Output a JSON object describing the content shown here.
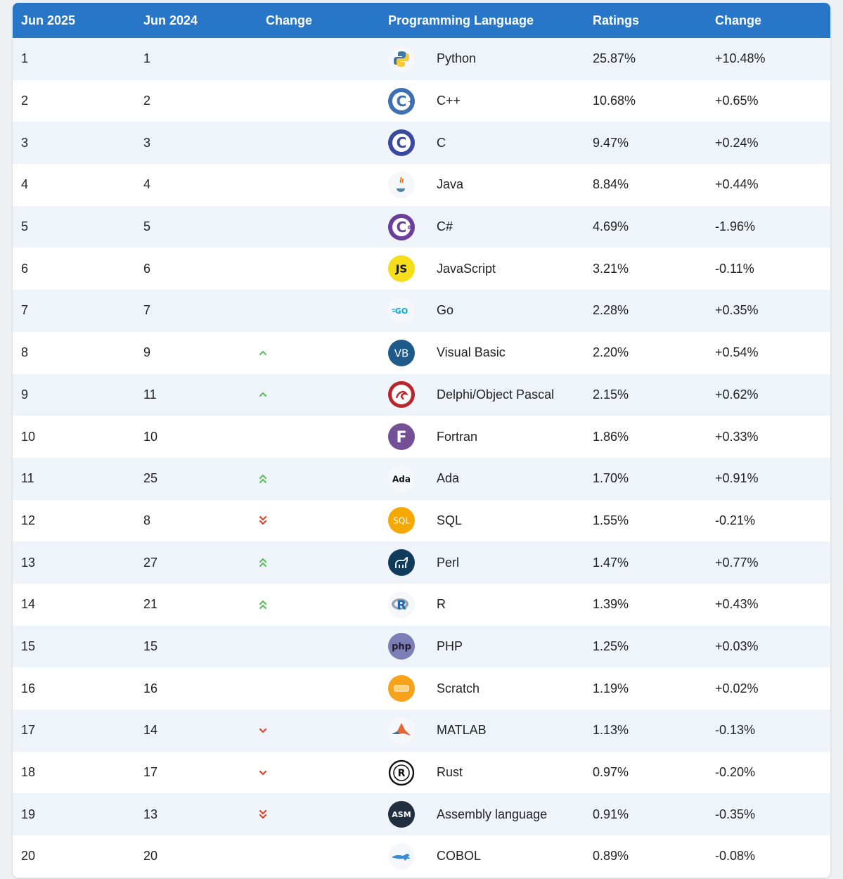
{
  "header": {
    "col_jun2025": "Jun 2025",
    "col_jun2024": "Jun 2024",
    "col_change": "Change",
    "col_language": "Programming Language",
    "col_ratings": "Ratings",
    "col_change2": "Change"
  },
  "colors": {
    "header_bg": "#2776c8",
    "arrow_up": "#5bbf5b",
    "arrow_down": "#e0452b"
  },
  "rows": [
    {
      "jun2025": "1",
      "jun2024": "1",
      "trend": "none",
      "language": "Python",
      "icon": "python-icon",
      "ratings": "25.87%",
      "change": "+10.48%"
    },
    {
      "jun2025": "2",
      "jun2024": "2",
      "trend": "none",
      "language": "C++",
      "icon": "cpp-icon",
      "ratings": "10.68%",
      "change": "+0.65%"
    },
    {
      "jun2025": "3",
      "jun2024": "3",
      "trend": "none",
      "language": "C",
      "icon": "c-icon",
      "ratings": "9.47%",
      "change": "+0.24%"
    },
    {
      "jun2025": "4",
      "jun2024": "4",
      "trend": "none",
      "language": "Java",
      "icon": "java-icon",
      "ratings": "8.84%",
      "change": "+0.44%"
    },
    {
      "jun2025": "5",
      "jun2024": "5",
      "trend": "none",
      "language": "C#",
      "icon": "csharp-icon",
      "ratings": "4.69%",
      "change": "-1.96%"
    },
    {
      "jun2025": "6",
      "jun2024": "6",
      "trend": "none",
      "language": "JavaScript",
      "icon": "javascript-icon",
      "ratings": "3.21%",
      "change": "-0.11%"
    },
    {
      "jun2025": "7",
      "jun2024": "7",
      "trend": "none",
      "language": "Go",
      "icon": "go-icon",
      "ratings": "2.28%",
      "change": "+0.35%"
    },
    {
      "jun2025": "8",
      "jun2024": "9",
      "trend": "up",
      "language": "Visual Basic",
      "icon": "visual-basic-icon",
      "ratings": "2.20%",
      "change": "+0.54%"
    },
    {
      "jun2025": "9",
      "jun2024": "11",
      "trend": "up",
      "language": "Delphi/Object Pascal",
      "icon": "delphi-icon",
      "ratings": "2.15%",
      "change": "+0.62%"
    },
    {
      "jun2025": "10",
      "jun2024": "10",
      "trend": "none",
      "language": "Fortran",
      "icon": "fortran-icon",
      "ratings": "1.86%",
      "change": "+0.33%"
    },
    {
      "jun2025": "11",
      "jun2024": "25",
      "trend": "up2",
      "language": "Ada",
      "icon": "ada-icon",
      "ratings": "1.70%",
      "change": "+0.91%"
    },
    {
      "jun2025": "12",
      "jun2024": "8",
      "trend": "down2",
      "language": "SQL",
      "icon": "sql-icon",
      "ratings": "1.55%",
      "change": "-0.21%"
    },
    {
      "jun2025": "13",
      "jun2024": "27",
      "trend": "up2",
      "language": "Perl",
      "icon": "perl-icon",
      "ratings": "1.47%",
      "change": "+0.77%"
    },
    {
      "jun2025": "14",
      "jun2024": "21",
      "trend": "up2",
      "language": "R",
      "icon": "r-icon",
      "ratings": "1.39%",
      "change": "+0.43%"
    },
    {
      "jun2025": "15",
      "jun2024": "15",
      "trend": "none",
      "language": "PHP",
      "icon": "php-icon",
      "ratings": "1.25%",
      "change": "+0.03%"
    },
    {
      "jun2025": "16",
      "jun2024": "16",
      "trend": "none",
      "language": "Scratch",
      "icon": "scratch-icon",
      "ratings": "1.19%",
      "change": "+0.02%"
    },
    {
      "jun2025": "17",
      "jun2024": "14",
      "trend": "down",
      "language": "MATLAB",
      "icon": "matlab-icon",
      "ratings": "1.13%",
      "change": "-0.13%"
    },
    {
      "jun2025": "18",
      "jun2024": "17",
      "trend": "down",
      "language": "Rust",
      "icon": "rust-icon",
      "ratings": "0.97%",
      "change": "-0.20%"
    },
    {
      "jun2025": "19",
      "jun2024": "13",
      "trend": "down2",
      "language": "Assembly language",
      "icon": "assembly-icon",
      "ratings": "0.91%",
      "change": "-0.35%"
    },
    {
      "jun2025": "20",
      "jun2024": "20",
      "trend": "none",
      "language": "COBOL",
      "icon": "cobol-icon",
      "ratings": "0.89%",
      "change": "-0.08%"
    }
  ],
  "logo_text": {
    "javascript-icon": "JS",
    "visual-basic-icon": "VB",
    "fortran-icon": "F",
    "ada-icon": "Ada",
    "sql-icon": "SQL",
    "php-icon": "php",
    "assembly-icon": "ASM",
    "go-icon": "GO",
    "r-icon": "R",
    "c-icon": "C",
    "cpp-icon": "C",
    "csharp-icon": "C"
  }
}
